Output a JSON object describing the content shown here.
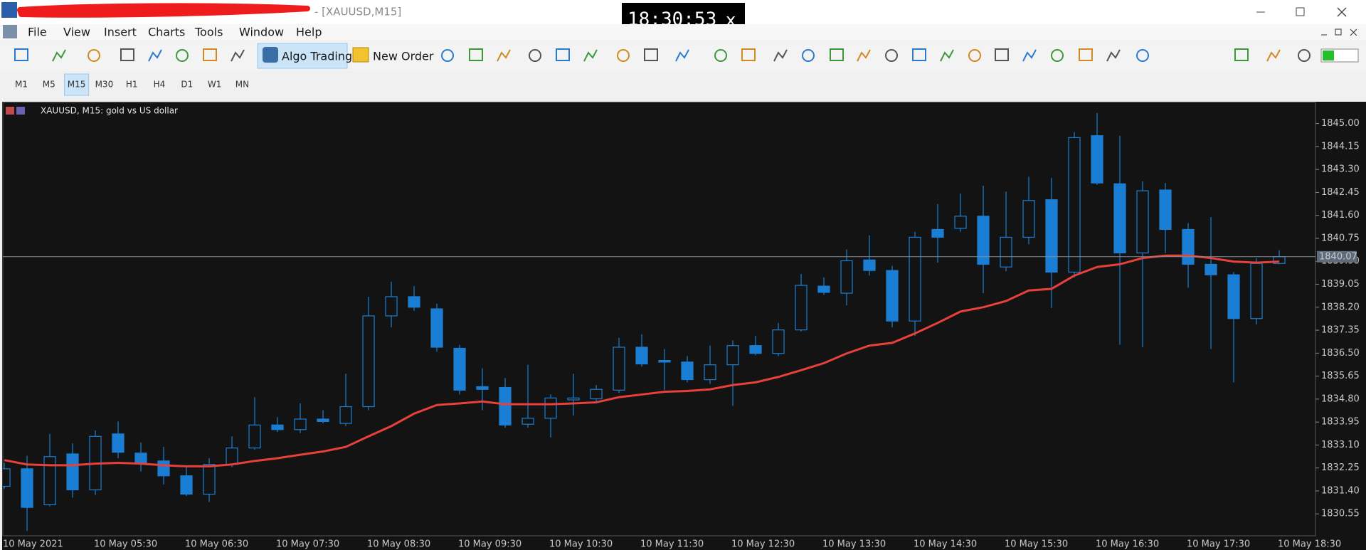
{
  "window": {
    "title": "- [XAUUSD,M15]",
    "clock": "18:30:53",
    "clock_close": "x"
  },
  "menu": [
    "File",
    "View",
    "Insert",
    "Charts",
    "Tools",
    "Window",
    "Help"
  ],
  "toolbar": {
    "algo_trading": "Algo Trading",
    "new_order": "New Order"
  },
  "timeframes": {
    "items": [
      "M1",
      "M5",
      "M15",
      "M30",
      "H1",
      "H4",
      "D1",
      "W1",
      "MN"
    ],
    "active": "M15"
  },
  "chart_data": {
    "type": "candlestick",
    "title": "XAUUSD, M15:  gold vs US dollar",
    "categories": [
      "10 May 2021",
      null,
      null,
      null,
      "10 May 05:30",
      null,
      null,
      null,
      "10 May 06:30",
      null,
      null,
      null,
      "10 May 07:30",
      null,
      null,
      null,
      "10 May 08:30",
      null,
      null,
      null,
      "10 May 09:30",
      null,
      null,
      null,
      "10 May 10:30",
      null,
      null,
      null,
      "10 May 11:30",
      null,
      null,
      null,
      "10 May 12:30",
      null,
      null,
      null,
      "10 May 13:30",
      null,
      null,
      null,
      "10 May 14:30",
      null,
      null,
      null,
      "10 May 15:30",
      null,
      null,
      null,
      "10 May 16:30",
      null,
      null,
      null,
      "10 May 17:30",
      null,
      null,
      null,
      "10 May 18:30"
    ],
    "series": [
      {
        "type": "candlestick",
        "color": "#1a7fd4",
        "open": [
          1831.57,
          1832.22,
          1830.89,
          1832.77,
          1831.44,
          1833.51,
          1832.8,
          1832.51,
          1831.96,
          1831.28,
          1832.38,
          1832.99,
          1833.84,
          1833.67,
          1834.06,
          1833.9,
          1834.52,
          1837.88,
          1838.59,
          1838.14,
          1836.68,
          1835.26,
          1835.23,
          1833.87,
          1834.09,
          1834.77,
          1834.81,
          1835.13,
          1836.72,
          1836.23,
          1836.17,
          1835.52,
          1836.07,
          1836.78,
          1836.49,
          1837.36,
          1838.98,
          1838.72,
          1839.95,
          1839.56,
          1837.69,
          1841.08,
          1841.12,
          1841.57,
          1839.69,
          1840.79,
          1842.18,
          1839.5,
          1844.55,
          1842.77,
          1840.21,
          1842.54,
          1841.08,
          1839.79,
          1839.4,
          1837.78,
          1839.82
        ],
        "high": [
          1832.44,
          1832.7,
          1833.51,
          1833.16,
          1833.64,
          1833.97,
          1833.19,
          1833.03,
          1832.28,
          1832.61,
          1833.42,
          1834.87,
          1834.13,
          1834.64,
          1834.39,
          1835.74,
          1838.59,
          1839.14,
          1838.98,
          1838.33,
          1836.81,
          1835.94,
          1835.58,
          1836.07,
          1834.97,
          1835.74,
          1835.32,
          1837.07,
          1837.2,
          1836.65,
          1836.39,
          1836.78,
          1836.97,
          1837.14,
          1837.62,
          1839.43,
          1839.3,
          1840.34,
          1840.86,
          1839.73,
          1840.99,
          1842.02,
          1842.41,
          1842.7,
          1842.48,
          1843.03,
          1842.99,
          1844.68,
          1845.39,
          1844.55,
          1842.86,
          1842.8,
          1841.31,
          1841.54,
          1839.5,
          1840.02,
          1840.31
        ],
        "low": [
          1831.47,
          1829.92,
          1830.83,
          1831.15,
          1831.25,
          1832.61,
          1832.12,
          1831.64,
          1831.21,
          1830.99,
          1832.28,
          1832.93,
          1833.58,
          1833.54,
          1833.9,
          1833.8,
          1834.39,
          1837.46,
          1838.07,
          1836.55,
          1834.97,
          1834.39,
          1833.74,
          1833.74,
          1833.38,
          1834.19,
          1834.64,
          1835.03,
          1836.0,
          1835.13,
          1835.42,
          1835.36,
          1834.55,
          1836.42,
          1836.39,
          1837.3,
          1838.66,
          1838.27,
          1839.37,
          1837.46,
          1837.14,
          1839.85,
          1840.99,
          1838.72,
          1839.53,
          1840.53,
          1838.17,
          1839.3,
          1842.73,
          1836.81,
          1836.72,
          1840.21,
          1838.92,
          1836.65,
          1835.42,
          1837.56,
          1839.79
        ],
        "close": [
          1832.22,
          1830.79,
          1832.67,
          1831.44,
          1833.42,
          1832.83,
          1832.44,
          1831.96,
          1831.28,
          1832.38,
          1832.99,
          1833.84,
          1833.67,
          1834.06,
          1833.97,
          1834.52,
          1837.88,
          1838.59,
          1838.2,
          1836.72,
          1835.13,
          1835.16,
          1833.84,
          1834.09,
          1834.84,
          1834.84,
          1835.16,
          1836.72,
          1836.1,
          1836.17,
          1835.52,
          1836.07,
          1836.78,
          1836.49,
          1837.36,
          1839.01,
          1838.75,
          1839.92,
          1839.56,
          1837.69,
          1840.79,
          1840.79,
          1841.57,
          1839.79,
          1840.79,
          1842.15,
          1839.5,
          1844.48,
          1842.8,
          1840.21,
          1842.51,
          1841.08,
          1839.79,
          1839.4,
          1837.78,
          1839.82,
          1840.07
        ]
      },
      {
        "type": "line",
        "color": "#e8403a",
        "values": [
          1832.54,
          1832.38,
          1832.35,
          1832.35,
          1832.41,
          1832.44,
          1832.41,
          1832.35,
          1832.31,
          1832.31,
          1832.38,
          1832.51,
          1832.61,
          1832.74,
          1832.86,
          1833.03,
          1833.42,
          1833.8,
          1834.26,
          1834.58,
          1834.64,
          1834.71,
          1834.61,
          1834.61,
          1834.61,
          1834.64,
          1834.68,
          1834.87,
          1834.97,
          1835.07,
          1835.1,
          1835.16,
          1835.32,
          1835.42,
          1835.62,
          1835.87,
          1836.13,
          1836.49,
          1836.78,
          1836.88,
          1837.23,
          1837.62,
          1838.04,
          1838.2,
          1838.43,
          1838.82,
          1838.88,
          1839.37,
          1839.69,
          1839.79,
          1840.02,
          1840.11,
          1840.11,
          1840.02,
          1839.89,
          1839.85,
          1839.89
        ]
      }
    ],
    "current_price": 1840.07,
    "ylim": [
      1829.74,
      1845.78
    ],
    "yticks": [
      1830.55,
      {
        "value": 1831.4,
        "label": "1831.40"
      },
      1832.25,
      {
        "value": 1833.1,
        "label": "1833.10"
      },
      1833.95,
      {
        "value": 1834.8,
        "label": "1834.80"
      },
      1835.65,
      {
        "value": 1836.5,
        "label": "1836.50"
      },
      1837.35,
      {
        "value": 1838.2,
        "label": "1838.20"
      },
      1839.05,
      {
        "value": 1839.9,
        "label": "1839.90"
      },
      1840.75,
      {
        "value": 1841.6,
        "label": "1841.60"
      },
      1842.45,
      {
        "value": 1843.3,
        "label": "1843.30"
      },
      1844.15,
      {
        "value": 1845,
        "label": "1845.00"
      }
    ],
    "grid": false
  }
}
